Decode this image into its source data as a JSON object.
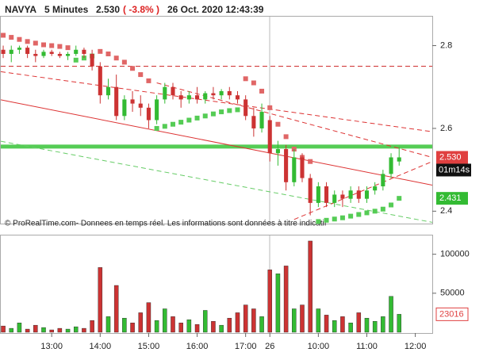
{
  "header": {
    "symbol": "NAVYA",
    "interval": "5 Minutes",
    "price": "2.530",
    "change": "( -3.8% )",
    "datetime": "26 Oct. 2020 12:43:39"
  },
  "chart_data": [
    {
      "type": "candlestick",
      "xlim": [
        -0.3,
        53.1
      ],
      "ylim": [
        2.37,
        2.87
      ],
      "yticks": [
        2.4,
        2.6,
        2.8
      ],
      "up_color": "#33bb33",
      "down_color": "#cc3333",
      "open": [
        2.79,
        2.78,
        2.79,
        2.795,
        2.78,
        2.775,
        2.785,
        2.78,
        2.775,
        2.78,
        2.79,
        2.78,
        2.75,
        2.68,
        2.7,
        2.63,
        2.67,
        2.66,
        2.65,
        2.62,
        2.67,
        2.7,
        2.68,
        2.67,
        2.68,
        2.67,
        2.685,
        2.68,
        2.69,
        2.68,
        2.67,
        2.63,
        2.6,
        2.62,
        2.54,
        2.55,
        2.47,
        2.53,
        2.48,
        2.42,
        2.46,
        2.42,
        2.44,
        2.43,
        2.45,
        2.43,
        2.45,
        2.46,
        2.49,
        2.52
      ],
      "high": [
        2.8,
        2.8,
        2.8,
        2.8,
        2.79,
        2.79,
        2.79,
        2.785,
        2.785,
        2.8,
        2.795,
        2.79,
        2.76,
        2.72,
        2.73,
        2.68,
        2.69,
        2.68,
        2.66,
        2.68,
        2.71,
        2.71,
        2.69,
        2.69,
        2.7,
        2.69,
        2.7,
        2.695,
        2.7,
        2.69,
        2.68,
        2.65,
        2.66,
        2.63,
        2.57,
        2.56,
        2.55,
        2.54,
        2.49,
        2.47,
        2.47,
        2.45,
        2.45,
        2.46,
        2.46,
        2.46,
        2.47,
        2.5,
        2.54,
        2.555
      ],
      "low": [
        2.77,
        2.76,
        2.78,
        2.77,
        2.76,
        2.77,
        2.775,
        2.77,
        2.765,
        2.775,
        2.77,
        2.74,
        2.66,
        2.67,
        2.62,
        2.62,
        2.64,
        2.63,
        2.6,
        2.61,
        2.66,
        2.67,
        2.65,
        2.66,
        2.66,
        2.66,
        2.67,
        2.67,
        2.67,
        2.66,
        2.62,
        2.58,
        2.59,
        2.52,
        2.51,
        2.45,
        2.46,
        2.47,
        2.39,
        2.41,
        2.41,
        2.41,
        2.41,
        2.42,
        2.42,
        2.42,
        2.44,
        2.45,
        2.48,
        2.51
      ],
      "close": [
        2.78,
        2.79,
        2.795,
        2.78,
        2.775,
        2.785,
        2.78,
        2.775,
        2.78,
        2.79,
        2.78,
        2.75,
        2.68,
        2.7,
        2.63,
        2.67,
        2.66,
        2.65,
        2.62,
        2.67,
        2.7,
        2.68,
        2.67,
        2.68,
        2.67,
        2.685,
        2.68,
        2.69,
        2.68,
        2.67,
        2.63,
        2.6,
        2.64,
        2.54,
        2.55,
        2.47,
        2.53,
        2.48,
        2.42,
        2.46,
        2.42,
        2.44,
        2.43,
        2.45,
        2.43,
        2.45,
        2.46,
        2.49,
        2.53,
        2.53
      ],
      "sar_above": [
        2.825,
        2.82,
        2.815,
        2.81,
        2.806,
        2.802,
        2.8,
        2.798,
        2.795,
        null,
        null,
        null,
        2.786,
        2.78,
        2.77,
        2.76,
        2.745,
        2.73,
        2.715,
        null,
        null,
        null,
        null,
        null,
        null,
        null,
        null,
        null,
        null,
        null,
        2.72,
        2.71,
        2.69,
        2.65,
        2.61,
        2.58,
        2.55,
        2.53,
        2.52,
        null,
        null,
        null,
        null,
        null,
        null,
        null,
        null,
        null,
        null,
        null
      ],
      "sar_below": [
        null,
        null,
        null,
        null,
        null,
        null,
        null,
        null,
        null,
        2.765,
        2.77,
        2.775,
        null,
        null,
        null,
        null,
        null,
        null,
        null,
        2.6,
        2.605,
        2.61,
        2.615,
        2.62,
        2.625,
        2.63,
        2.635,
        2.64,
        2.643,
        2.645,
        null,
        null,
        null,
        null,
        null,
        null,
        null,
        null,
        null,
        2.375,
        2.378,
        2.381,
        2.384,
        2.388,
        2.392,
        2.396,
        2.4,
        2.405,
        2.415,
        2.431
      ],
      "sar_above_color": "#e06666",
      "sar_below_color": "#55cc55",
      "lines": [
        {
          "color": "#cc2222",
          "style": "dashed",
          "x": [
            -0.3,
            53.1
          ],
          "y": [
            2.75,
            2.75
          ]
        },
        {
          "color": "#55cc55",
          "style": "thick",
          "x": [
            -0.3,
            53.1
          ],
          "y": [
            2.556,
            2.556
          ]
        },
        {
          "color": "#dd3333",
          "style": "solid",
          "x": [
            -0.3,
            53.1
          ],
          "y": [
            2.669,
            2.463
          ]
        },
        {
          "color": "#dd3333",
          "style": "dashed",
          "x": [
            -0.3,
            53.1
          ],
          "y": [
            2.737,
            2.592
          ]
        },
        {
          "color": "#dd3333",
          "style": "dashed",
          "x": [
            19,
            53.1
          ],
          "y": [
            2.71,
            2.53
          ]
        },
        {
          "color": "#66cc66",
          "style": "dashed",
          "x": [
            -0.3,
            53.1
          ],
          "y": [
            2.569,
            2.373
          ]
        },
        {
          "color": "#dd3333",
          "style": "dashed",
          "x": [
            36,
            53.1
          ],
          "y": [
            2.38,
            2.52
          ]
        }
      ],
      "price_tags": [
        {
          "value": 2.53,
          "label": "2.530",
          "color": "#e04040"
        },
        {
          "value": 2.431,
          "label": "2.431",
          "color": "#33bb33"
        }
      ],
      "timer": "01m14s",
      "watermark": "© ProRealTime.com- Donnees en temps réel. Les informations sont données à titre indicatif"
    },
    {
      "type": "bar",
      "xlim": [
        -0.3,
        53.1
      ],
      "ylim": [
        0,
        120000
      ],
      "yticks": [
        50000,
        100000
      ],
      "values": [
        8000,
        5000,
        12000,
        4000,
        9000,
        6000,
        3000,
        5000,
        4000,
        7000,
        5000,
        15000,
        83000,
        20000,
        60000,
        18000,
        12000,
        25000,
        38000,
        15000,
        30000,
        20000,
        12000,
        16000,
        10000,
        28000,
        14000,
        9000,
        18000,
        25000,
        35000,
        30000,
        20000,
        80000,
        75000,
        85000,
        30000,
        35000,
        117000,
        30000,
        22000,
        15000,
        20000,
        12000,
        25000,
        18000,
        14000,
        20000,
        46000,
        23016
      ],
      "last_tag": {
        "value": 23016,
        "color": "#e04040"
      },
      "xticks": [
        {
          "value": 6,
          "label": "13:00"
        },
        {
          "value": 12,
          "label": "14:00"
        },
        {
          "value": 18,
          "label": "15:00"
        },
        {
          "value": 24,
          "label": "16:00"
        },
        {
          "value": 30,
          "label": "17:00"
        },
        {
          "value": 33,
          "label": "26"
        },
        {
          "value": 39,
          "label": "10:00"
        },
        {
          "value": 45,
          "label": "11:00"
        },
        {
          "value": 51,
          "label": "12:00"
        }
      ]
    }
  ]
}
